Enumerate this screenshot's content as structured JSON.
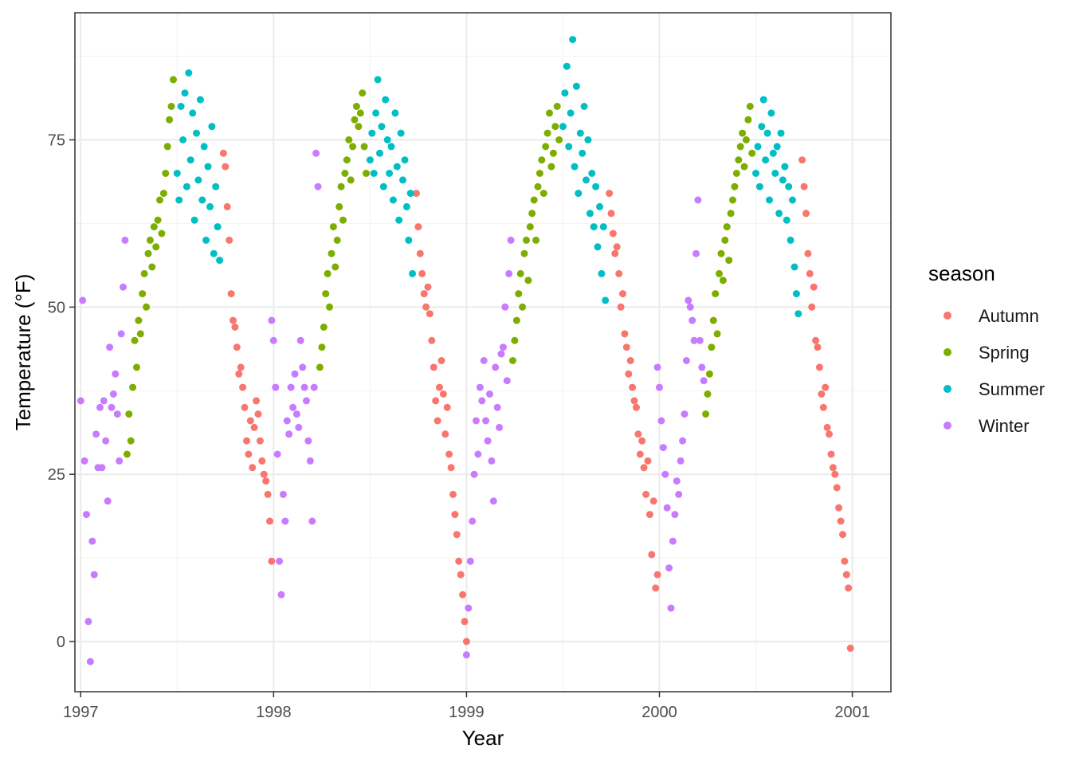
{
  "chart_data": {
    "type": "scatter",
    "title": "",
    "xlabel": "Year",
    "ylabel": "Temperature (°F)",
    "xlim": [
      1996.97,
      2001.2
    ],
    "ylim": [
      -7.5,
      94
    ],
    "xticks": [
      1997,
      1998,
      1999,
      2000,
      2001
    ],
    "yticks": [
      0,
      25,
      50,
      75
    ],
    "grid": true,
    "legend": {
      "title": "season",
      "placement": "right"
    },
    "series": [
      {
        "name": "Autumn",
        "color": "#F8766D",
        "x": [
          1997.74,
          1997.75,
          1997.76,
          1997.77,
          1997.78,
          1997.79,
          1997.8,
          1997.81,
          1997.82,
          1997.83,
          1997.84,
          1997.85,
          1997.86,
          1997.87,
          1997.88,
          1997.89,
          1997.9,
          1997.91,
          1997.92,
          1997.93,
          1997.94,
          1997.95,
          1997.96,
          1997.97,
          1997.98,
          1997.99,
          1998.74,
          1998.75,
          1998.76,
          1998.77,
          1998.78,
          1998.79,
          1998.8,
          1998.81,
          1998.82,
          1998.83,
          1998.84,
          1998.85,
          1998.86,
          1998.87,
          1998.88,
          1998.89,
          1998.9,
          1998.91,
          1998.92,
          1998.93,
          1998.94,
          1998.95,
          1998.96,
          1998.97,
          1998.98,
          1998.99,
          1999.0,
          1999.74,
          1999.75,
          1999.76,
          1999.77,
          1999.78,
          1999.79,
          1999.8,
          1999.81,
          1999.82,
          1999.83,
          1999.84,
          1999.85,
          1999.86,
          1999.87,
          1999.88,
          1999.89,
          1999.9,
          1999.91,
          1999.92,
          1999.93,
          1999.94,
          1999.95,
          1999.96,
          1999.97,
          1999.98,
          1999.99,
          2000.74,
          2000.75,
          2000.76,
          2000.77,
          2000.78,
          2000.79,
          2000.8,
          2000.81,
          2000.82,
          2000.83,
          2000.84,
          2000.85,
          2000.86,
          2000.87,
          2000.88,
          2000.89,
          2000.9,
          2000.91,
          2000.92,
          2000.93,
          2000.94,
          2000.95,
          2000.96,
          2000.97,
          2000.98,
          2000.99
        ],
        "y": [
          73,
          71,
          65,
          60,
          52,
          48,
          47,
          44,
          40,
          41,
          38,
          35,
          30,
          28,
          33,
          26,
          32,
          36,
          34,
          30,
          27,
          25,
          24,
          22,
          18,
          12,
          67,
          62,
          58,
          55,
          52,
          50,
          53,
          49,
          45,
          41,
          36,
          33,
          38,
          42,
          37,
          31,
          35,
          28,
          26,
          22,
          19,
          16,
          12,
          10,
          7,
          3,
          0,
          67,
          64,
          61,
          58,
          59,
          55,
          50,
          52,
          46,
          44,
          40,
          42,
          38,
          36,
          35,
          31,
          28,
          30,
          26,
          22,
          27,
          19,
          13,
          21,
          8,
          10,
          72,
          68,
          64,
          58,
          55,
          50,
          53,
          45,
          44,
          41,
          37,
          35,
          38,
          32,
          31,
          28,
          26,
          25,
          23,
          20,
          18,
          16,
          12,
          10,
          8,
          -1
        ]
      },
      {
        "name": "Spring",
        "color": "#7CAE00",
        "x": [
          1997.24,
          1997.25,
          1997.26,
          1997.27,
          1997.28,
          1997.29,
          1997.3,
          1997.31,
          1997.32,
          1997.33,
          1997.34,
          1997.35,
          1997.36,
          1997.37,
          1997.38,
          1997.39,
          1997.4,
          1997.41,
          1997.42,
          1997.43,
          1997.44,
          1997.45,
          1997.46,
          1997.47,
          1997.48,
          1998.24,
          1998.25,
          1998.26,
          1998.27,
          1998.28,
          1998.29,
          1998.3,
          1998.31,
          1998.32,
          1998.33,
          1998.34,
          1998.35,
          1998.36,
          1998.37,
          1998.38,
          1998.39,
          1998.4,
          1998.41,
          1998.42,
          1998.43,
          1998.44,
          1998.45,
          1998.46,
          1998.47,
          1998.48,
          1999.24,
          1999.25,
          1999.26,
          1999.27,
          1999.28,
          1999.29,
          1999.3,
          1999.31,
          1999.32,
          1999.33,
          1999.34,
          1999.35,
          1999.36,
          1999.37,
          1999.38,
          1999.39,
          1999.4,
          1999.41,
          1999.42,
          1999.43,
          1999.44,
          1999.45,
          1999.46,
          1999.47,
          1999.48,
          2000.24,
          2000.25,
          2000.26,
          2000.27,
          2000.28,
          2000.29,
          2000.3,
          2000.31,
          2000.32,
          2000.33,
          2000.34,
          2000.35,
          2000.36,
          2000.37,
          2000.38,
          2000.39,
          2000.4,
          2000.41,
          2000.42,
          2000.43,
          2000.44,
          2000.45,
          2000.46,
          2000.47,
          2000.48
        ],
        "y": [
          28,
          34,
          30,
          38,
          45,
          41,
          48,
          46,
          52,
          55,
          50,
          58,
          60,
          56,
          62,
          59,
          63,
          66,
          61,
          67,
          70,
          74,
          78,
          80,
          84,
          41,
          44,
          47,
          52,
          55,
          50,
          58,
          62,
          56,
          60,
          65,
          68,
          63,
          70,
          72,
          75,
          69,
          74,
          78,
          80,
          77,
          79,
          82,
          74,
          70,
          42,
          45,
          48,
          52,
          55,
          50,
          58,
          60,
          54,
          62,
          64,
          66,
          60,
          68,
          70,
          72,
          67,
          74,
          76,
          79,
          71,
          73,
          77,
          80,
          75,
          34,
          37,
          40,
          44,
          48,
          52,
          46,
          55,
          58,
          54,
          60,
          62,
          57,
          64,
          66,
          68,
          70,
          72,
          74,
          76,
          71,
          75,
          78,
          80,
          73
        ]
      },
      {
        "name": "Summer",
        "color": "#00BFC4",
        "x": [
          1997.5,
          1997.51,
          1997.52,
          1997.53,
          1997.54,
          1997.55,
          1997.56,
          1997.57,
          1997.58,
          1997.59,
          1997.6,
          1997.61,
          1997.62,
          1997.63,
          1997.64,
          1997.65,
          1997.66,
          1997.67,
          1997.68,
          1997.69,
          1997.7,
          1997.71,
          1997.72,
          1998.5,
          1998.51,
          1998.52,
          1998.53,
          1998.54,
          1998.55,
          1998.56,
          1998.57,
          1998.58,
          1998.59,
          1998.6,
          1998.61,
          1998.62,
          1998.63,
          1998.64,
          1998.65,
          1998.66,
          1998.67,
          1998.68,
          1998.69,
          1998.7,
          1998.71,
          1998.72,
          1999.5,
          1999.51,
          1999.52,
          1999.53,
          1999.54,
          1999.55,
          1999.56,
          1999.57,
          1999.58,
          1999.59,
          1999.6,
          1999.61,
          1999.62,
          1999.63,
          1999.64,
          1999.65,
          1999.66,
          1999.67,
          1999.68,
          1999.69,
          1999.7,
          1999.71,
          1999.72,
          2000.5,
          2000.51,
          2000.52,
          2000.53,
          2000.54,
          2000.55,
          2000.56,
          2000.57,
          2000.58,
          2000.59,
          2000.6,
          2000.61,
          2000.62,
          2000.63,
          2000.64,
          2000.65,
          2000.66,
          2000.67,
          2000.68,
          2000.69,
          2000.7,
          2000.71,
          2000.72
        ],
        "y": [
          70,
          66,
          80,
          75,
          82,
          68,
          85,
          72,
          79,
          63,
          76,
          69,
          81,
          66,
          74,
          60,
          71,
          65,
          77,
          58,
          68,
          62,
          57,
          72,
          76,
          70,
          79,
          84,
          73,
          77,
          68,
          81,
          75,
          70,
          74,
          66,
          79,
          71,
          63,
          76,
          69,
          72,
          65,
          60,
          67,
          55,
          77,
          82,
          86,
          74,
          79,
          90,
          71,
          83,
          67,
          76,
          73,
          80,
          69,
          75,
          64,
          70,
          62,
          68,
          59,
          65,
          55,
          62,
          51,
          70,
          74,
          68,
          77,
          81,
          72,
          76,
          66,
          79,
          73,
          70,
          74,
          64,
          76,
          69,
          71,
          63,
          68,
          60,
          66,
          56,
          52,
          49
        ]
      },
      {
        "name": "Winter",
        "color": "#C77CFF",
        "x": [
          1997.0,
          1997.01,
          1997.02,
          1997.03,
          1997.04,
          1997.05,
          1997.06,
          1997.07,
          1997.08,
          1997.09,
          1997.1,
          1997.11,
          1997.12,
          1997.13,
          1997.14,
          1997.15,
          1997.16,
          1997.17,
          1997.18,
          1997.19,
          1997.2,
          1997.21,
          1997.22,
          1997.23,
          1997.99,
          1998.0,
          1998.01,
          1998.02,
          1998.03,
          1998.04,
          1998.05,
          1998.06,
          1998.07,
          1998.08,
          1998.09,
          1998.1,
          1998.11,
          1998.12,
          1998.13,
          1998.14,
          1998.15,
          1998.16,
          1998.17,
          1998.18,
          1998.19,
          1998.2,
          1998.21,
          1998.22,
          1998.23,
          1999.0,
          1999.01,
          1999.02,
          1999.03,
          1999.04,
          1999.05,
          1999.06,
          1999.07,
          1999.08,
          1999.09,
          1999.1,
          1999.11,
          1999.12,
          1999.13,
          1999.14,
          1999.15,
          1999.16,
          1999.17,
          1999.18,
          1999.19,
          1999.2,
          1999.21,
          1999.22,
          1999.23,
          1999.99,
          2000.0,
          2000.01,
          2000.02,
          2000.03,
          2000.04,
          2000.05,
          2000.06,
          2000.07,
          2000.08,
          2000.09,
          2000.1,
          2000.11,
          2000.12,
          2000.13,
          2000.14,
          2000.15,
          2000.16,
          2000.17,
          2000.18,
          2000.19,
          2000.2,
          2000.21,
          2000.22,
          2000.23
        ],
        "y": [
          36,
          51,
          27,
          19,
          3,
          -3,
          15,
          10,
          31,
          26,
          35,
          26,
          36,
          30,
          21,
          44,
          35,
          37,
          40,
          34,
          27,
          46,
          53,
          60,
          48,
          45,
          38,
          28,
          12,
          7,
          22,
          18,
          33,
          31,
          38,
          35,
          40,
          34,
          32,
          45,
          41,
          38,
          36,
          30,
          27,
          18,
          38,
          73,
          68,
          -2,
          5,
          12,
          18,
          25,
          33,
          28,
          38,
          36,
          42,
          33,
          30,
          37,
          27,
          21,
          41,
          35,
          32,
          43,
          44,
          50,
          39,
          55,
          60,
          41,
          38,
          33,
          29,
          25,
          20,
          11,
          5,
          15,
          19,
          24,
          22,
          27,
          30,
          34,
          42,
          51,
          50,
          48,
          45,
          58,
          66,
          45,
          41,
          39
        ]
      }
    ]
  }
}
